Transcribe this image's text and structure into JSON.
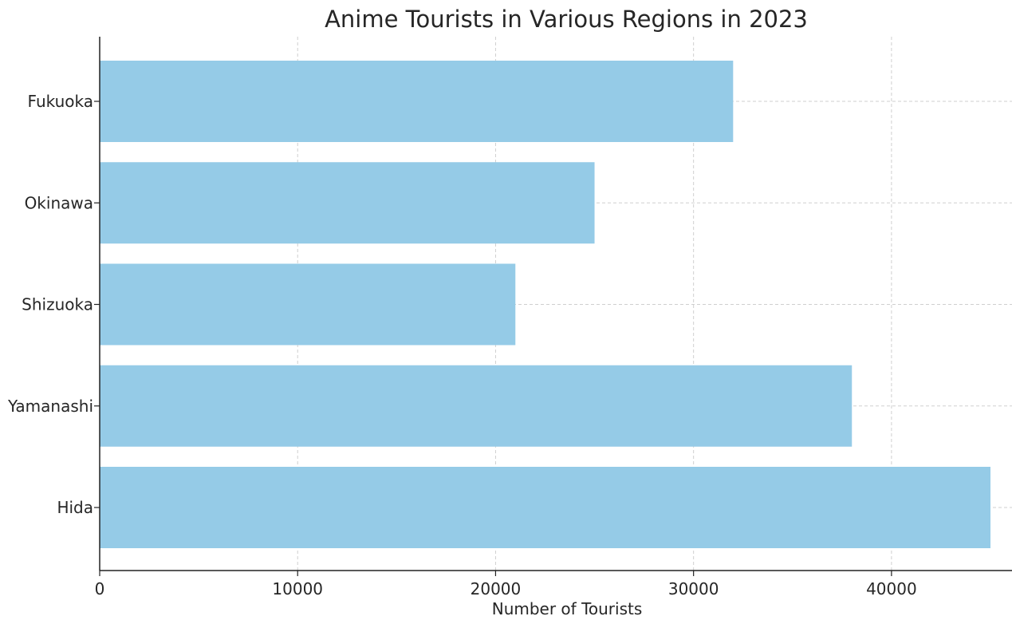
{
  "chart_data": {
    "type": "bar",
    "orientation": "horizontal",
    "title": "Anime Tourists in Various Regions in 2023",
    "xlabel": "Number of Tourists",
    "ylabel": "",
    "categories": [
      "Fukuoka",
      "Okinawa",
      "Shizuoka",
      "Yamanashi",
      "Hida"
    ],
    "values": [
      32000,
      25000,
      21000,
      38000,
      45000
    ],
    "xlim": [
      0,
      46000
    ],
    "xticks": [
      0,
      10000,
      20000,
      30000,
      40000
    ],
    "xtick_labels": [
      "0",
      "10000",
      "20000",
      "30000",
      "40000"
    ],
    "grid": true,
    "bar_color": "#95cbe7"
  }
}
